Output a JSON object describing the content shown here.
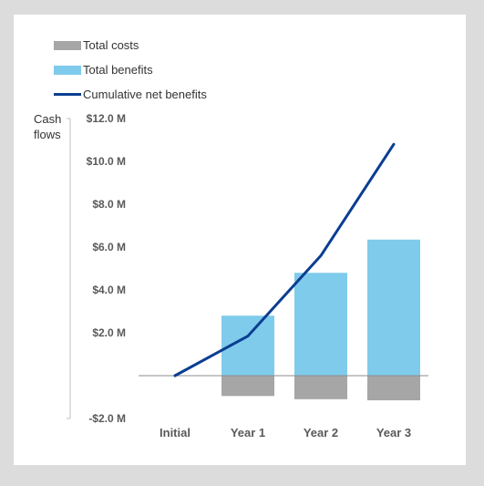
{
  "chart_data": {
    "type": "bar",
    "ylabel": "Cash flows",
    "categories": [
      "Initial",
      "Year 1",
      "Year 2",
      "Year 3"
    ],
    "ylim": [
      -2.0,
      12.0
    ],
    "y_ticks": [
      {
        "value": 12,
        "label": "$12.0 M"
      },
      {
        "value": 10,
        "label": "$10.0 M"
      },
      {
        "value": 8,
        "label": "$8.0 M"
      },
      {
        "value": 6,
        "label": "$6.0 M"
      },
      {
        "value": 4,
        "label": "$4.0 M"
      },
      {
        "value": 2,
        "label": "$2.0 M"
      },
      {
        "value": -2,
        "label": "-$2.0 M"
      }
    ],
    "series": [
      {
        "name": "Total costs",
        "type": "bar",
        "color": "#a6a6a6",
        "values": [
          0,
          -0.95,
          -1.1,
          -1.15
        ]
      },
      {
        "name": "Total benefits",
        "type": "bar",
        "color": "#7fcbec",
        "values": [
          0,
          2.8,
          4.8,
          6.35
        ]
      },
      {
        "name": "Cumulative net benefits",
        "type": "line",
        "color": "#0b3e91",
        "values": [
          0,
          1.85,
          5.6,
          10.8
        ]
      }
    ],
    "legend_position": "top-left",
    "grid": false
  }
}
